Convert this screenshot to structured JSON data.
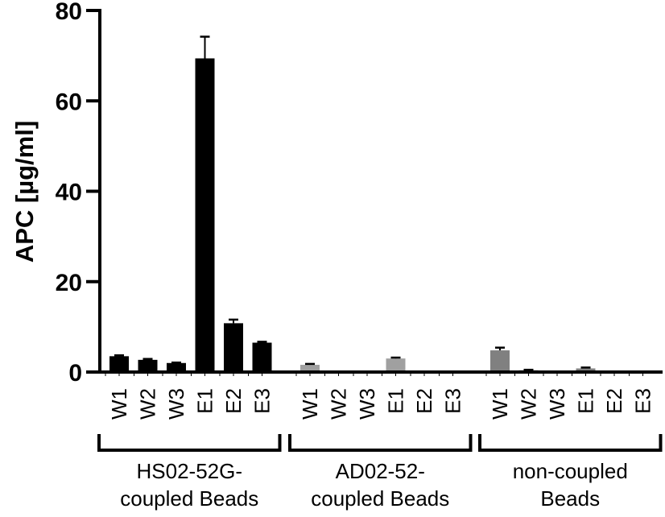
{
  "chart_data": {
    "type": "bar",
    "title": "",
    "xlabel": "",
    "ylabel": "APC [µg/ml]",
    "ylim": [
      0,
      80
    ],
    "yticks": [
      0,
      20,
      40,
      60,
      80
    ],
    "grid": false,
    "legend": null,
    "categories": [
      "W1",
      "W2",
      "W3",
      "E1",
      "E2",
      "E3"
    ],
    "groups": [
      {
        "name": "HS02-52G-coupled Beads",
        "label_lines": [
          "HS02-52G-",
          "coupled Beads"
        ],
        "color": "#000000",
        "values": [
          3.5,
          2.7,
          2.0,
          69.4,
          10.8,
          6.5
        ],
        "errors": [
          0.2,
          0.2,
          0.1,
          4.8,
          0.8,
          0.2
        ]
      },
      {
        "name": "AD02-52-coupled Beads",
        "label_lines": [
          "AD02-52-",
          "coupled Beads"
        ],
        "color": "#a0a0a0",
        "values": [
          1.6,
          0,
          0,
          3.0,
          0,
          0
        ],
        "errors": [
          0.2,
          0,
          0,
          0.2,
          0,
          0
        ]
      },
      {
        "name": "non-coupled Beads",
        "label_lines": [
          "non-coupled",
          "Beads"
        ],
        "color": "#808080",
        "values": [
          4.8,
          0.4,
          0,
          0.8,
          0,
          0
        ],
        "errors": [
          0.6,
          0.1,
          0,
          0.2,
          0,
          0
        ]
      }
    ]
  }
}
